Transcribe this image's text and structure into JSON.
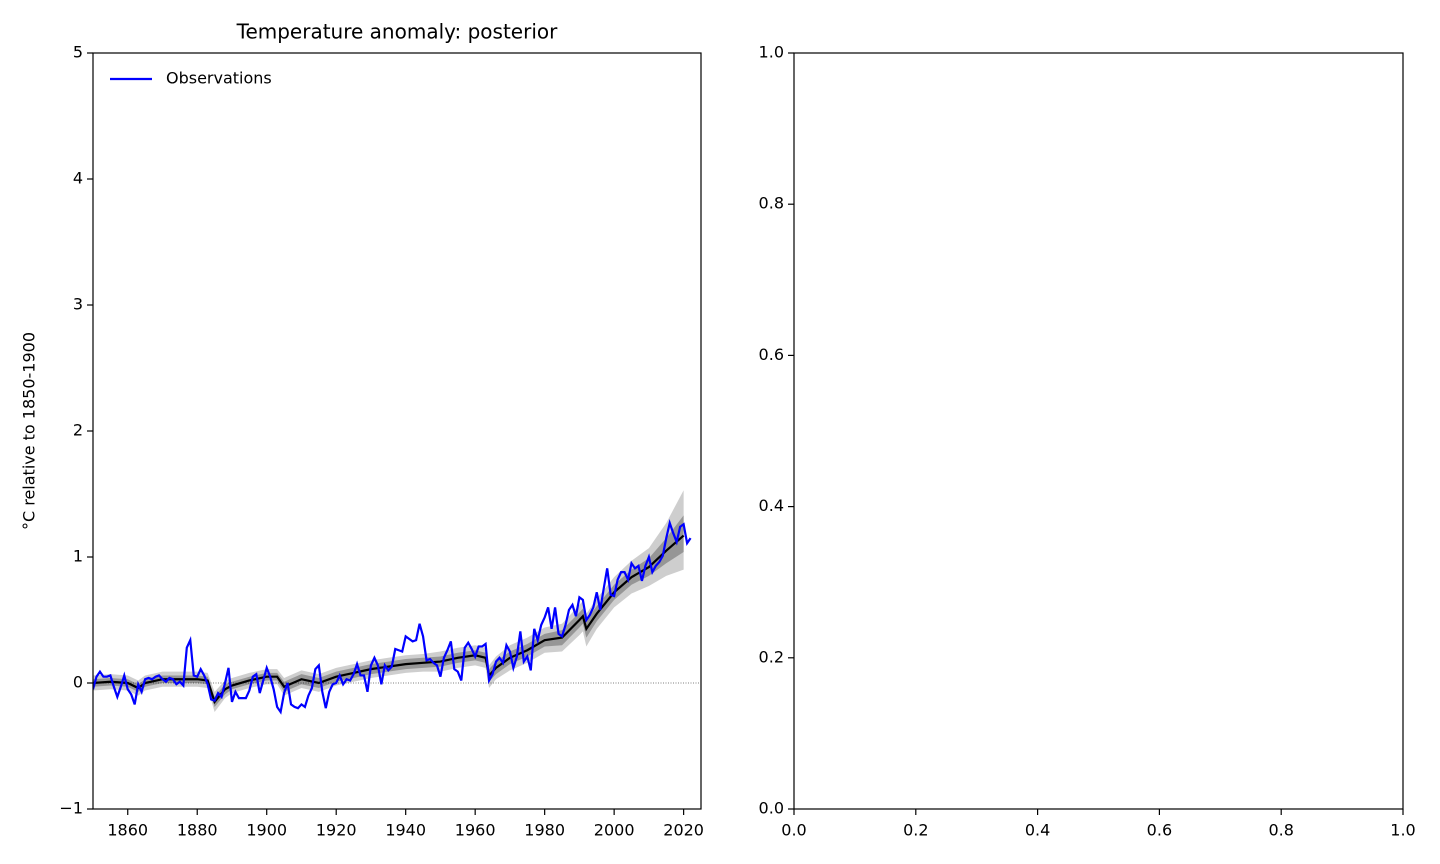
{
  "chart_data": [
    {
      "type": "line",
      "title": "Temperature anomaly: posterior",
      "y_label": "°C relative to 1850-1900",
      "xlim": [
        1850,
        2025
      ],
      "ylim": [
        -1,
        5
      ],
      "xticks": [
        1860,
        1880,
        1900,
        1920,
        1940,
        1960,
        1980,
        2000,
        2020
      ],
      "yticks": [
        {
          "value": -1,
          "label": "−1"
        },
        0,
        1,
        2,
        3,
        4,
        5
      ],
      "legend": "upper left",
      "reference_line": 0,
      "series": [
        {
          "name": "Observations",
          "color": "#0000ff",
          "x": [
            1850,
            1851,
            1852,
            1853,
            1854,
            1855,
            1856,
            1857,
            1858,
            1859,
            1860,
            1861,
            1862,
            1863,
            1864,
            1865,
            1866,
            1867,
            1868,
            1869,
            1870,
            1871,
            1872,
            1873,
            1874,
            1875,
            1876,
            1877,
            1878,
            1879,
            1880,
            1881,
            1882,
            1883,
            1884,
            1885,
            1886,
            1887,
            1888,
            1889,
            1890,
            1891,
            1892,
            1893,
            1894,
            1895,
            1896,
            1897,
            1898,
            1899,
            1900,
            1901,
            1902,
            1903,
            1904,
            1905,
            1906,
            1907,
            1908,
            1909,
            1910,
            1911,
            1912,
            1913,
            1914,
            1915,
            1916,
            1917,
            1918,
            1919,
            1920,
            1921,
            1922,
            1923,
            1924,
            1925,
            1926,
            1927,
            1928,
            1929,
            1930,
            1931,
            1932,
            1933,
            1934,
            1935,
            1936,
            1937,
            1938,
            1939,
            1940,
            1941,
            1942,
            1943,
            1944,
            1945,
            1946,
            1947,
            1948,
            1949,
            1950,
            1951,
            1952,
            1953,
            1954,
            1955,
            1956,
            1957,
            1958,
            1959,
            1960,
            1961,
            1962,
            1963,
            1964,
            1965,
            1966,
            1967,
            1968,
            1969,
            1970,
            1971,
            1972,
            1973,
            1974,
            1975,
            1976,
            1977,
            1978,
            1979,
            1980,
            1981,
            1982,
            1983,
            1984,
            1985,
            1986,
            1987,
            1988,
            1989,
            1990,
            1991,
            1992,
            1993,
            1994,
            1995,
            1996,
            1997,
            1998,
            1999,
            2000,
            2001,
            2002,
            2003,
            2004,
            2005,
            2006,
            2007,
            2008,
            2009,
            2010,
            2011,
            2012,
            2013,
            2014,
            2015,
            2016,
            2017,
            2018,
            2019,
            2020,
            2021,
            2022
          ],
          "values": [
            -0.05,
            0.05,
            0.09,
            0.05,
            0.05,
            0.06,
            -0.03,
            -0.11,
            -0.03,
            0.06,
            -0.05,
            -0.09,
            -0.17,
            -0.01,
            -0.07,
            0.03,
            0.04,
            0.03,
            0.05,
            0.06,
            0.03,
            0.01,
            0.04,
            0.03,
            -0.01,
            0.01,
            -0.02,
            0.28,
            0.34,
            0.06,
            0.05,
            0.11,
            0.06,
            -0.01,
            -0.13,
            -0.14,
            -0.08,
            -0.11,
            0.0,
            0.12,
            -0.15,
            -0.07,
            -0.12,
            -0.12,
            -0.12,
            -0.06,
            0.05,
            0.07,
            -0.08,
            0.02,
            0.12,
            0.05,
            -0.05,
            -0.19,
            -0.23,
            -0.08,
            0.0,
            -0.17,
            -0.19,
            -0.2,
            -0.17,
            -0.19,
            -0.1,
            -0.04,
            0.11,
            0.14,
            -0.07,
            -0.2,
            -0.07,
            -0.01,
            0.0,
            0.06,
            -0.01,
            0.03,
            0.02,
            0.07,
            0.15,
            0.06,
            0.06,
            -0.07,
            0.14,
            0.2,
            0.14,
            -0.01,
            0.14,
            0.1,
            0.13,
            0.27,
            0.26,
            0.25,
            0.37,
            0.35,
            0.33,
            0.34,
            0.47,
            0.37,
            0.18,
            0.19,
            0.16,
            0.14,
            0.05,
            0.2,
            0.26,
            0.33,
            0.11,
            0.09,
            0.02,
            0.28,
            0.32,
            0.27,
            0.21,
            0.29,
            0.29,
            0.31,
            0.02,
            0.07,
            0.17,
            0.2,
            0.16,
            0.3,
            0.25,
            0.12,
            0.21,
            0.41,
            0.17,
            0.21,
            0.1,
            0.43,
            0.34,
            0.46,
            0.52,
            0.6,
            0.43,
            0.6,
            0.39,
            0.37,
            0.46,
            0.58,
            0.62,
            0.53,
            0.68,
            0.66,
            0.5,
            0.54,
            0.6,
            0.72,
            0.58,
            0.75,
            0.91,
            0.7,
            0.69,
            0.82,
            0.88,
            0.88,
            0.82,
            0.95,
            0.91,
            0.93,
            0.81,
            0.93,
            1.0,
            0.88,
            0.93,
            0.96,
            1.01,
            1.15,
            1.27,
            1.19,
            1.12,
            1.24,
            1.26,
            1.11,
            1.15
          ]
        }
      ],
      "model": {
        "color": "#000000",
        "x": [
          1850,
          1855,
          1860,
          1863,
          1865,
          1870,
          1875,
          1880,
          1883,
          1885,
          1888,
          1890,
          1895,
          1900,
          1903,
          1905,
          1910,
          1915,
          1920,
          1925,
          1930,
          1935,
          1940,
          1945,
          1950,
          1955,
          1960,
          1963,
          1964,
          1966,
          1970,
          1975,
          1980,
          1985,
          1990,
          1991,
          1992,
          1995,
          2000,
          2005,
          2010,
          2015,
          2020
        ],
        "median": [
          0.0,
          0.01,
          0.0,
          -0.04,
          0.0,
          0.03,
          0.03,
          0.03,
          0.02,
          -0.15,
          -0.05,
          -0.02,
          0.02,
          0.05,
          0.05,
          -0.03,
          0.03,
          0.0,
          0.05,
          0.08,
          0.11,
          0.13,
          0.15,
          0.16,
          0.17,
          0.2,
          0.22,
          0.2,
          0.06,
          0.12,
          0.2,
          0.26,
          0.34,
          0.36,
          0.5,
          0.53,
          0.43,
          0.55,
          0.72,
          0.84,
          0.92,
          1.05,
          1.17
        ],
        "bands": [
          {
            "color": "#c6c6c6",
            "lower": [
              -0.06,
              -0.05,
              -0.06,
              -0.1,
              -0.06,
              -0.03,
              -0.03,
              -0.03,
              -0.04,
              -0.23,
              -0.12,
              -0.08,
              -0.04,
              -0.01,
              -0.01,
              -0.1,
              -0.04,
              -0.07,
              -0.02,
              0.01,
              0.04,
              0.06,
              0.08,
              0.09,
              0.09,
              0.12,
              0.14,
              0.12,
              -0.04,
              0.03,
              0.1,
              0.16,
              0.24,
              0.25,
              0.38,
              0.41,
              0.29,
              0.43,
              0.6,
              0.71,
              0.77,
              0.85,
              0.9
            ],
            "upper": [
              0.06,
              0.07,
              0.06,
              0.02,
              0.06,
              0.09,
              0.09,
              0.09,
              0.08,
              -0.07,
              0.02,
              0.04,
              0.08,
              0.11,
              0.11,
              0.04,
              0.1,
              0.07,
              0.12,
              0.15,
              0.18,
              0.2,
              0.22,
              0.23,
              0.25,
              0.28,
              0.3,
              0.28,
              0.14,
              0.21,
              0.3,
              0.36,
              0.44,
              0.47,
              0.62,
              0.65,
              0.55,
              0.67,
              0.84,
              0.97,
              1.07,
              1.27,
              1.53
            ]
          },
          {
            "color": "#8c8c8c",
            "lower": [
              -0.03,
              -0.02,
              -0.03,
              -0.07,
              -0.03,
              0.0,
              0.0,
              0.0,
              -0.01,
              -0.19,
              -0.09,
              -0.05,
              -0.01,
              0.02,
              0.02,
              -0.07,
              -0.01,
              -0.04,
              0.01,
              0.04,
              0.07,
              0.09,
              0.11,
              0.12,
              0.13,
              0.16,
              0.18,
              0.16,
              0.01,
              0.07,
              0.15,
              0.21,
              0.29,
              0.3,
              0.44,
              0.47,
              0.36,
              0.49,
              0.66,
              0.78,
              0.85,
              0.95,
              1.04
            ],
            "upper": [
              0.03,
              0.04,
              0.03,
              -0.01,
              0.03,
              0.06,
              0.06,
              0.06,
              0.05,
              -0.11,
              -0.01,
              0.01,
              0.05,
              0.08,
              0.08,
              0.01,
              0.07,
              0.04,
              0.09,
              0.12,
              0.15,
              0.17,
              0.19,
              0.2,
              0.21,
              0.24,
              0.26,
              0.24,
              0.11,
              0.17,
              0.25,
              0.31,
              0.39,
              0.42,
              0.56,
              0.59,
              0.5,
              0.61,
              0.78,
              0.9,
              0.99,
              1.15,
              1.33
            ]
          }
        ]
      }
    },
    {
      "type": "line",
      "xlim": [
        0,
        1
      ],
      "ylim": [
        0,
        1
      ],
      "xticks": [
        {
          "value": 0,
          "label": "0.0"
        },
        0.2,
        0.4,
        0.6,
        0.8,
        {
          "value": 1,
          "label": "1.0"
        }
      ],
      "yticks": [
        {
          "value": 0,
          "label": "0.0"
        },
        0.2,
        0.4,
        0.6,
        0.8,
        {
          "value": 1,
          "label": "1.0"
        }
      ]
    }
  ]
}
